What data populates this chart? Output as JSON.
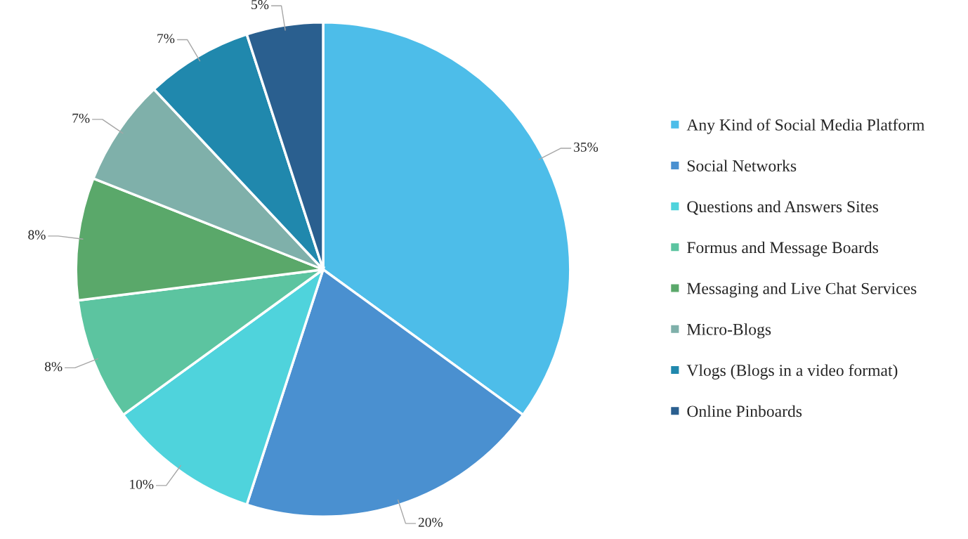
{
  "chart_data": {
    "type": "pie",
    "categories": [
      "Any Kind of Social Media Platform",
      "Social Networks",
      "Questions and Answers Sites",
      "Formus and Message Boards",
      "Messaging and Live Chat Services",
      "Micro-Blogs",
      "Vlogs (Blogs in a video format)",
      "Online Pinboards"
    ],
    "values": [
      35,
      20,
      10,
      8,
      8,
      7,
      7,
      5
    ],
    "colors": [
      "#4dbde9",
      "#4a90d0",
      "#4fd3dc",
      "#5cc4a0",
      "#5aa86a",
      "#7fb0aa",
      "#2088ad",
      "#2a5f8f"
    ],
    "value_labels": [
      "35%",
      "20%",
      "10%",
      "8%",
      "8%",
      "7%",
      "7%",
      "5%"
    ],
    "legend": "right"
  }
}
